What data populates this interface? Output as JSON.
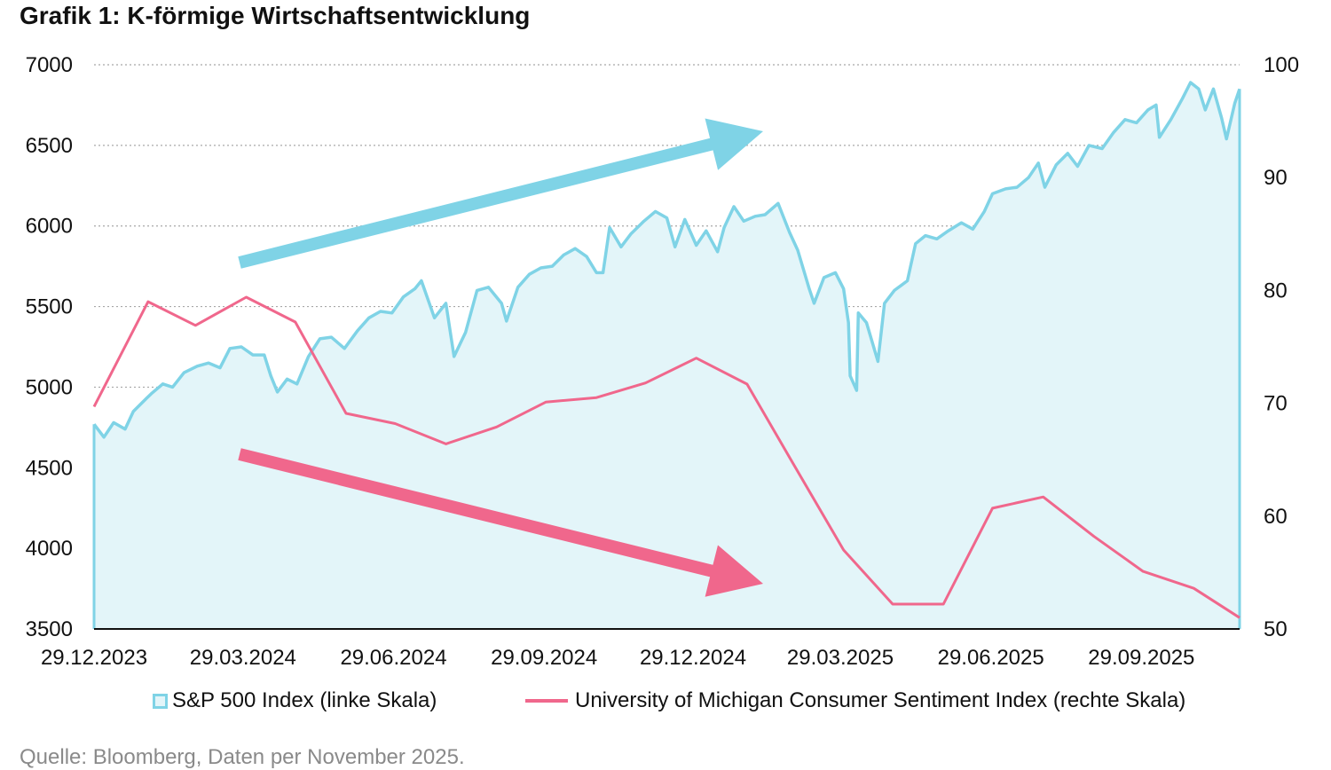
{
  "title": "Grafik 1: K-förmige Wirtschaftsentwicklung",
  "source": "Quelle: Bloomberg, Daten per November 2025.",
  "legend": {
    "sp500": "S&P 500 Index (linke Skala)",
    "umich": "University of Michigan Consumer Sentiment Index (rechte Skala)"
  },
  "colors": {
    "sp500_line": "#7fd3e6",
    "sp500_fill": "#e3f5f9",
    "umich_line": "#f0678c",
    "up_arrow": "#7fd3e6",
    "down_arrow": "#f0678c",
    "grid": "#a8a8a8",
    "axis": "#111111"
  },
  "chart_data": {
    "type": "line",
    "title": "Grafik 1: K-förmige Wirtschaftsentwicklung",
    "x_ticks": [
      "29.12.2023",
      "29.03.2024",
      "29.06.2024",
      "29.09.2024",
      "29.12.2024",
      "29.03.2025",
      "29.06.2025",
      "29.09.2025"
    ],
    "x_range": [
      "2023-12-29",
      "2025-11-28"
    ],
    "y_left": {
      "range": [
        3500,
        7000
      ],
      "ticks": [
        3500,
        4000,
        4500,
        5000,
        5500,
        6000,
        6500,
        7000
      ]
    },
    "y_right": {
      "range": [
        50,
        100
      ],
      "ticks": [
        50,
        60,
        70,
        80,
        90,
        100
      ]
    },
    "grid": "horizontal dotted",
    "legend_position": "bottom",
    "annotations": [
      "upward arrow (blue)",
      "downward arrow (pink)"
    ],
    "series": [
      {
        "name": "S&P 500 Index (linke Skala)",
        "axis": "left",
        "style": "area",
        "points": [
          [
            "2023-12-29",
            4770
          ],
          [
            "2024-01-04",
            4690
          ],
          [
            "2024-01-10",
            4780
          ],
          [
            "2024-01-17",
            4740
          ],
          [
            "2024-01-22",
            4850
          ],
          [
            "2024-01-30",
            4930
          ],
          [
            "2024-02-02",
            4960
          ],
          [
            "2024-02-09",
            5020
          ],
          [
            "2024-02-15",
            5000
          ],
          [
            "2024-02-22",
            5090
          ],
          [
            "2024-03-01",
            5130
          ],
          [
            "2024-03-08",
            5150
          ],
          [
            "2024-03-15",
            5120
          ],
          [
            "2024-03-21",
            5240
          ],
          [
            "2024-03-28",
            5250
          ],
          [
            "2024-04-04",
            5200
          ],
          [
            "2024-04-11",
            5200
          ],
          [
            "2024-04-15",
            5070
          ],
          [
            "2024-04-19",
            4970
          ],
          [
            "2024-04-25",
            5050
          ],
          [
            "2024-05-01",
            5020
          ],
          [
            "2024-05-08",
            5190
          ],
          [
            "2024-05-15",
            5300
          ],
          [
            "2024-05-22",
            5310
          ],
          [
            "2024-05-30",
            5240
          ],
          [
            "2024-06-07",
            5350
          ],
          [
            "2024-06-14",
            5430
          ],
          [
            "2024-06-21",
            5470
          ],
          [
            "2024-06-28",
            5460
          ],
          [
            "2024-07-05",
            5560
          ],
          [
            "2024-07-12",
            5610
          ],
          [
            "2024-07-16",
            5660
          ],
          [
            "2024-07-24",
            5430
          ],
          [
            "2024-07-31",
            5520
          ],
          [
            "2024-08-05",
            5190
          ],
          [
            "2024-08-12",
            5340
          ],
          [
            "2024-08-19",
            5600
          ],
          [
            "2024-08-26",
            5620
          ],
          [
            "2024-09-03",
            5520
          ],
          [
            "2024-09-06",
            5410
          ],
          [
            "2024-09-13",
            5620
          ],
          [
            "2024-09-20",
            5700
          ],
          [
            "2024-09-27",
            5740
          ],
          [
            "2024-10-04",
            5750
          ],
          [
            "2024-10-11",
            5820
          ],
          [
            "2024-10-18",
            5860
          ],
          [
            "2024-10-25",
            5810
          ],
          [
            "2024-10-31",
            5710
          ],
          [
            "2024-11-04",
            5710
          ],
          [
            "2024-11-08",
            5990
          ],
          [
            "2024-11-15",
            5870
          ],
          [
            "2024-11-21",
            5950
          ],
          [
            "2024-11-29",
            6030
          ],
          [
            "2024-12-06",
            6090
          ],
          [
            "2024-12-13",
            6050
          ],
          [
            "2024-12-18",
            5870
          ],
          [
            "2024-12-24",
            6040
          ],
          [
            "2024-12-31",
            5880
          ],
          [
            "2025-01-06",
            5970
          ],
          [
            "2025-01-13",
            5840
          ],
          [
            "2025-01-17",
            5990
          ],
          [
            "2025-01-23",
            6120
          ],
          [
            "2025-01-29",
            6030
          ],
          [
            "2025-02-05",
            6060
          ],
          [
            "2025-02-11",
            6070
          ],
          [
            "2025-02-19",
            6140
          ],
          [
            "2025-02-26",
            5960
          ],
          [
            "2025-03-03",
            5850
          ],
          [
            "2025-03-10",
            5610
          ],
          [
            "2025-03-13",
            5520
          ],
          [
            "2025-03-19",
            5680
          ],
          [
            "2025-03-26",
            5710
          ],
          [
            "2025-03-31",
            5610
          ],
          [
            "2025-04-03",
            5400
          ],
          [
            "2025-04-04",
            5070
          ],
          [
            "2025-04-08",
            4980
          ],
          [
            "2025-04-09",
            5460
          ],
          [
            "2025-04-14",
            5400
          ],
          [
            "2025-04-21",
            5160
          ],
          [
            "2025-04-25",
            5520
          ],
          [
            "2025-05-01",
            5600
          ],
          [
            "2025-05-09",
            5660
          ],
          [
            "2025-05-14",
            5890
          ],
          [
            "2025-05-20",
            5940
          ],
          [
            "2025-05-27",
            5920
          ],
          [
            "2025-06-03",
            5970
          ],
          [
            "2025-06-11",
            6020
          ],
          [
            "2025-06-18",
            5980
          ],
          [
            "2025-06-25",
            6090
          ],
          [
            "2025-06-30",
            6200
          ],
          [
            "2025-07-08",
            6230
          ],
          [
            "2025-07-15",
            6240
          ],
          [
            "2025-07-22",
            6300
          ],
          [
            "2025-07-28",
            6390
          ],
          [
            "2025-08-01",
            6240
          ],
          [
            "2025-08-08",
            6380
          ],
          [
            "2025-08-15",
            6450
          ],
          [
            "2025-08-21",
            6370
          ],
          [
            "2025-08-28",
            6500
          ],
          [
            "2025-09-05",
            6480
          ],
          [
            "2025-09-12",
            6580
          ],
          [
            "2025-09-19",
            6660
          ],
          [
            "2025-09-26",
            6640
          ],
          [
            "2025-10-03",
            6720
          ],
          [
            "2025-10-08",
            6750
          ],
          [
            "2025-10-10",
            6550
          ],
          [
            "2025-10-17",
            6660
          ],
          [
            "2025-10-24",
            6790
          ],
          [
            "2025-10-29",
            6890
          ],
          [
            "2025-11-03",
            6850
          ],
          [
            "2025-11-07",
            6720
          ],
          [
            "2025-11-12",
            6850
          ],
          [
            "2025-11-17",
            6670
          ],
          [
            "2025-11-20",
            6540
          ],
          [
            "2025-11-25",
            6760
          ],
          [
            "2025-11-28",
            6850
          ]
        ]
      },
      {
        "name": "University of Michigan Consumer Sentiment Index (rechte Skala)",
        "axis": "right",
        "style": "line",
        "points": [
          [
            "2023-12-29",
            69.7
          ],
          [
            "2024-01-31",
            79.0
          ],
          [
            "2024-02-29",
            76.9
          ],
          [
            "2024-03-31",
            79.4
          ],
          [
            "2024-04-30",
            77.2
          ],
          [
            "2024-05-31",
            69.1
          ],
          [
            "2024-06-30",
            68.2
          ],
          [
            "2024-07-31",
            66.4
          ],
          [
            "2024-08-31",
            67.9
          ],
          [
            "2024-09-30",
            70.1
          ],
          [
            "2024-10-31",
            70.5
          ],
          [
            "2024-11-30",
            71.8
          ],
          [
            "2024-12-31",
            74.0
          ],
          [
            "2025-01-31",
            71.7
          ],
          [
            "2025-02-28",
            64.7
          ],
          [
            "2025-03-31",
            57.0
          ],
          [
            "2025-04-30",
            52.2
          ],
          [
            "2025-05-31",
            52.2
          ],
          [
            "2025-06-30",
            60.7
          ],
          [
            "2025-07-31",
            61.7
          ],
          [
            "2025-08-31",
            58.2
          ],
          [
            "2025-09-30",
            55.1
          ],
          [
            "2025-10-31",
            53.6
          ],
          [
            "2025-11-28",
            51.0
          ]
        ]
      }
    ]
  }
}
